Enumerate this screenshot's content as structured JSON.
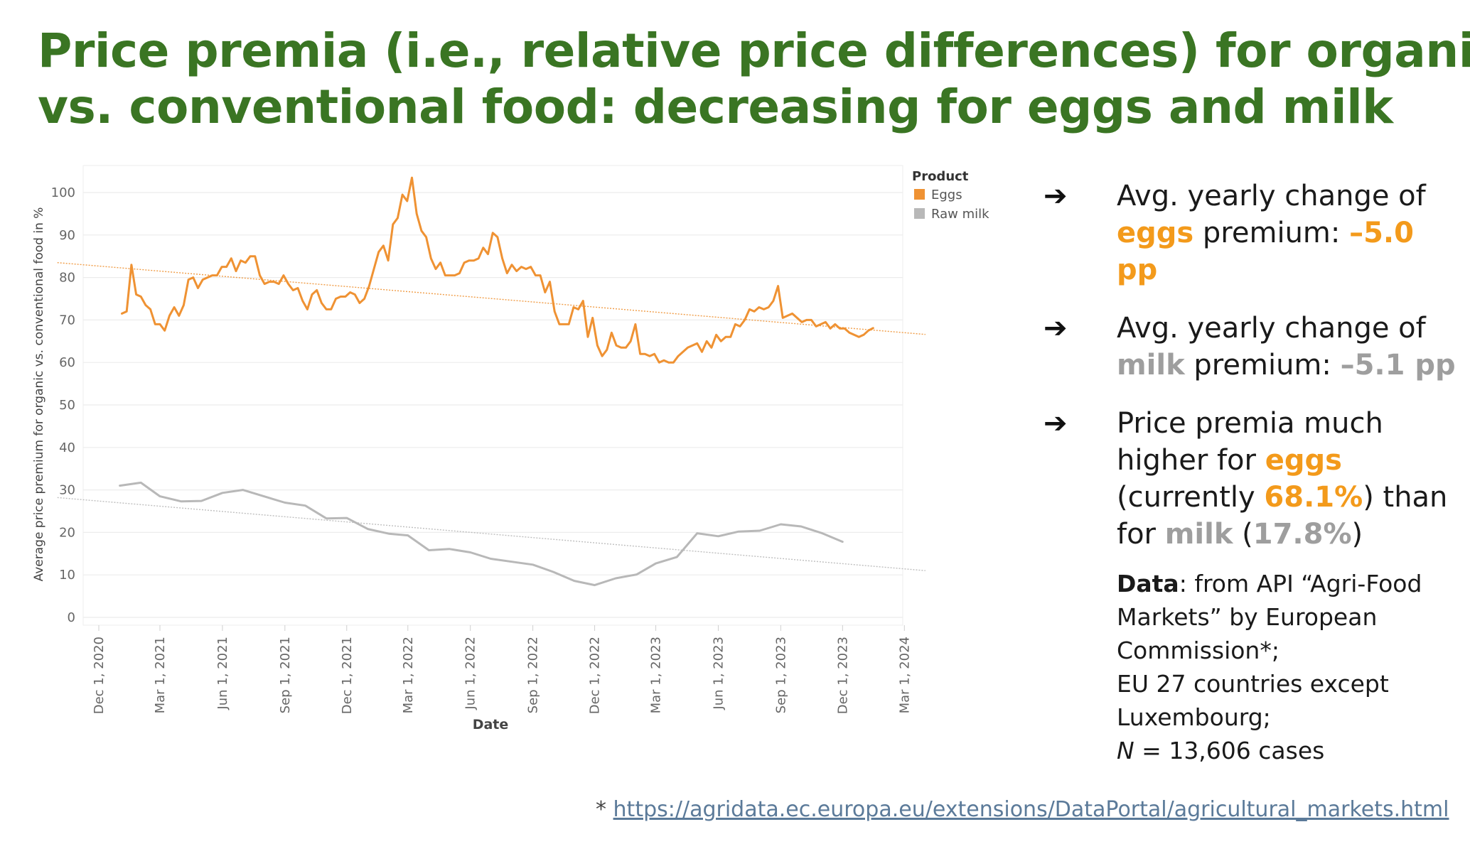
{
  "title": {
    "line1": "Price premia (i.e., relative price differences) for organic",
    "line2": "vs. conventional food: decreasing for eggs and milk"
  },
  "colors": {
    "title": "#3a7523",
    "eggs": "#ef9233",
    "milk": "#b8b8b8",
    "highlight_orange": "#f39a1b",
    "highlight_gray": "#9e9e9e"
  },
  "bullets": {
    "b1": {
      "pre": "Avg. yearly change of",
      "keyword": "eggs",
      "mid": " premium: ",
      "value": "–5.0 pp"
    },
    "b2": {
      "pre": "Avg. yearly change of",
      "keyword": "milk",
      "mid": " premium: ",
      "value": "–5.1 pp"
    },
    "b3": {
      "t1": "Price premia much higher for ",
      "k1": "eggs",
      "t2": "(currently ",
      "v1": "68.1%",
      "t3": ") than for ",
      "k2": "milk",
      "t4": " (",
      "v2": "17.8%",
      "t5": ")"
    }
  },
  "note": {
    "label": "Data",
    "text1": ": from API “Agri-Food Markets” by European Commission*;",
    "text2": "EU 27 countries except Luxembourg;",
    "n_label": "N",
    "n_text": " = 13,606 cases"
  },
  "footnote": {
    "star": "* ",
    "link": "https://agridata.ec.europa.eu/extensions/DataPortal/agricultural_markets.html"
  },
  "chart_data": {
    "type": "line",
    "xlabel": "Date",
    "ylabel": "Average price premium for organic vs. conventional food in %",
    "ylim": [
      0,
      100
    ],
    "yticks": [
      "0",
      "10",
      "20",
      "30",
      "40",
      "50",
      "60",
      "70",
      "80",
      "90",
      "100"
    ],
    "xticks": [
      "Dec 1, 2020",
      "Mar 1, 2021",
      "Jun 1, 2021",
      "Sep 1, 2021",
      "Dec 1, 2021",
      "Mar 1, 2022",
      "Jun 1, 2022",
      "Sep 1, 2022",
      "Dec 1, 2022",
      "Mar 1, 2023",
      "Jun 1, 2023",
      "Sep 1, 2023",
      "Dec 1, 2023",
      "Mar 1, 2024"
    ],
    "grid": "horizontal",
    "legend": {
      "title": "Product",
      "position": "top-right"
    },
    "series": [
      {
        "name": "Eggs",
        "color": "#ef9233",
        "points": [
          [
            "2021-01-04",
            71.5
          ],
          [
            "2021-01-11",
            72.0
          ],
          [
            "2021-01-18",
            83.0
          ],
          [
            "2021-01-25",
            76.0
          ],
          [
            "2021-02-01",
            75.5
          ],
          [
            "2021-02-08",
            73.5
          ],
          [
            "2021-02-15",
            72.5
          ],
          [
            "2021-02-22",
            69.0
          ],
          [
            "2021-03-01",
            69.0
          ],
          [
            "2021-03-08",
            67.5
          ],
          [
            "2021-03-15",
            71.0
          ],
          [
            "2021-03-22",
            73.0
          ],
          [
            "2021-03-29",
            71.0
          ],
          [
            "2021-04-05",
            73.5
          ],
          [
            "2021-04-12",
            79.5
          ],
          [
            "2021-04-19",
            80.0
          ],
          [
            "2021-04-26",
            77.5
          ],
          [
            "2021-05-03",
            79.5
          ],
          [
            "2021-05-10",
            80.0
          ],
          [
            "2021-05-17",
            80.5
          ],
          [
            "2021-05-24",
            80.5
          ],
          [
            "2021-05-31",
            82.5
          ],
          [
            "2021-06-07",
            82.5
          ],
          [
            "2021-06-14",
            84.5
          ],
          [
            "2021-06-21",
            81.5
          ],
          [
            "2021-06-28",
            84.0
          ],
          [
            "2021-07-05",
            83.5
          ],
          [
            "2021-07-12",
            85.0
          ],
          [
            "2021-07-19",
            85.0
          ],
          [
            "2021-07-26",
            80.5
          ],
          [
            "2021-08-02",
            78.5
          ],
          [
            "2021-08-09",
            79.0
          ],
          [
            "2021-08-16",
            79.0
          ],
          [
            "2021-08-23",
            78.5
          ],
          [
            "2021-08-30",
            80.5
          ],
          [
            "2021-09-06",
            78.5
          ],
          [
            "2021-09-13",
            77.0
          ],
          [
            "2021-09-20",
            77.5
          ],
          [
            "2021-09-27",
            74.5
          ],
          [
            "2021-10-04",
            72.5
          ],
          [
            "2021-10-11",
            76.0
          ],
          [
            "2021-10-18",
            77.0
          ],
          [
            "2021-10-25",
            74.0
          ],
          [
            "2021-11-01",
            72.5
          ],
          [
            "2021-11-08",
            72.5
          ],
          [
            "2021-11-15",
            75.0
          ],
          [
            "2021-11-22",
            75.5
          ],
          [
            "2021-11-29",
            75.5
          ],
          [
            "2021-12-06",
            76.5
          ],
          [
            "2021-12-13",
            76.0
          ],
          [
            "2021-12-20",
            74.0
          ],
          [
            "2021-12-27",
            75.0
          ],
          [
            "2022-01-03",
            78.0
          ],
          [
            "2022-01-10",
            82.0
          ],
          [
            "2022-01-17",
            86.0
          ],
          [
            "2022-01-24",
            87.5
          ],
          [
            "2022-01-31",
            84.0
          ],
          [
            "2022-02-07",
            92.5
          ],
          [
            "2022-02-14",
            94.0
          ],
          [
            "2022-02-21",
            99.5
          ],
          [
            "2022-02-28",
            98.0
          ],
          [
            "2022-03-07",
            103.5
          ],
          [
            "2022-03-14",
            95.0
          ],
          [
            "2022-03-21",
            91.0
          ],
          [
            "2022-03-28",
            89.5
          ],
          [
            "2022-04-04",
            84.5
          ],
          [
            "2022-04-11",
            82.0
          ],
          [
            "2022-04-18",
            83.5
          ],
          [
            "2022-04-25",
            80.5
          ],
          [
            "2022-05-02",
            80.5
          ],
          [
            "2022-05-09",
            80.5
          ],
          [
            "2022-05-16",
            81.0
          ],
          [
            "2022-05-23",
            83.5
          ],
          [
            "2022-05-30",
            84.0
          ],
          [
            "2022-06-06",
            84.0
          ],
          [
            "2022-06-13",
            84.5
          ],
          [
            "2022-06-20",
            87.0
          ],
          [
            "2022-06-27",
            85.5
          ],
          [
            "2022-07-04",
            90.5
          ],
          [
            "2022-07-11",
            89.5
          ],
          [
            "2022-07-18",
            84.5
          ],
          [
            "2022-07-25",
            81.0
          ],
          [
            "2022-08-01",
            83.0
          ],
          [
            "2022-08-08",
            81.5
          ],
          [
            "2022-08-15",
            82.5
          ],
          [
            "2022-08-22",
            82.0
          ],
          [
            "2022-08-29",
            82.5
          ],
          [
            "2022-09-05",
            80.5
          ],
          [
            "2022-09-12",
            80.5
          ],
          [
            "2022-09-19",
            76.5
          ],
          [
            "2022-09-26",
            79.0
          ],
          [
            "2022-10-03",
            72.0
          ],
          [
            "2022-10-10",
            69.0
          ],
          [
            "2022-10-17",
            69.0
          ],
          [
            "2022-10-24",
            69.0
          ],
          [
            "2022-10-31",
            73.0
          ],
          [
            "2022-11-07",
            72.5
          ],
          [
            "2022-11-14",
            74.5
          ],
          [
            "2022-11-21",
            66.0
          ],
          [
            "2022-11-28",
            70.5
          ],
          [
            "2022-12-05",
            64.0
          ],
          [
            "2022-12-12",
            61.5
          ],
          [
            "2022-12-19",
            63.0
          ],
          [
            "2022-12-26",
            67.0
          ],
          [
            "2023-01-02",
            64.0
          ],
          [
            "2023-01-09",
            63.5
          ],
          [
            "2023-01-16",
            63.5
          ],
          [
            "2023-01-23",
            65.0
          ],
          [
            "2023-01-30",
            69.0
          ],
          [
            "2023-02-06",
            62.0
          ],
          [
            "2023-02-13",
            62.0
          ],
          [
            "2023-02-20",
            61.5
          ],
          [
            "2023-02-27",
            62.0
          ],
          [
            "2023-03-06",
            60.0
          ],
          [
            "2023-03-13",
            60.5
          ],
          [
            "2023-03-20",
            60.0
          ],
          [
            "2023-03-27",
            60.0
          ],
          [
            "2023-04-03",
            61.5
          ],
          [
            "2023-04-10",
            62.5
          ],
          [
            "2023-04-17",
            63.5
          ],
          [
            "2023-04-24",
            64.0
          ],
          [
            "2023-05-01",
            64.5
          ],
          [
            "2023-05-08",
            62.5
          ],
          [
            "2023-05-15",
            65.0
          ],
          [
            "2023-05-22",
            63.5
          ],
          [
            "2023-05-29",
            66.5
          ],
          [
            "2023-06-05",
            65.0
          ],
          [
            "2023-06-12",
            66.0
          ],
          [
            "2023-06-19",
            66.0
          ],
          [
            "2023-06-26",
            69.0
          ],
          [
            "2023-07-03",
            68.5
          ],
          [
            "2023-07-10",
            70.0
          ],
          [
            "2023-07-17",
            72.5
          ],
          [
            "2023-07-24",
            72.0
          ],
          [
            "2023-07-31",
            73.0
          ],
          [
            "2023-08-07",
            72.5
          ],
          [
            "2023-08-14",
            73.0
          ],
          [
            "2023-08-21",
            74.5
          ],
          [
            "2023-08-28",
            78.0
          ],
          [
            "2023-09-04",
            70.5
          ],
          [
            "2023-09-11",
            71.0
          ],
          [
            "2023-09-18",
            71.5
          ],
          [
            "2023-09-25",
            70.5
          ],
          [
            "2023-10-02",
            69.5
          ],
          [
            "2023-10-09",
            70.0
          ],
          [
            "2023-10-16",
            70.0
          ],
          [
            "2023-10-23",
            68.5
          ],
          [
            "2023-10-30",
            69.0
          ],
          [
            "2023-11-06",
            69.5
          ],
          [
            "2023-11-13",
            68.0
          ],
          [
            "2023-11-20",
            69.0
          ],
          [
            "2023-11-27",
            68.0
          ],
          [
            "2023-12-04",
            68.0
          ],
          [
            "2023-12-11",
            67.0
          ],
          [
            "2023-12-18",
            66.5
          ],
          [
            "2023-12-25",
            66.0
          ],
          [
            "2024-01-01",
            66.5
          ],
          [
            "2024-01-08",
            67.5
          ],
          [
            "2024-01-15",
            68.1
          ]
        ],
        "trend": [
          [
            "2020-10-01",
            83.5
          ],
          [
            "2024-04-01",
            66.6
          ]
        ]
      },
      {
        "name": "Raw milk",
        "color": "#b8b8b8",
        "points": [
          [
            "2021-01-01",
            31.0
          ],
          [
            "2021-02-01",
            31.7
          ],
          [
            "2021-03-01",
            28.5
          ],
          [
            "2021-04-01",
            27.3
          ],
          [
            "2021-05-01",
            27.4
          ],
          [
            "2021-06-01",
            29.3
          ],
          [
            "2021-07-01",
            30.0
          ],
          [
            "2021-08-01",
            28.5
          ],
          [
            "2021-09-01",
            27.0
          ],
          [
            "2021-10-01",
            26.3
          ],
          [
            "2021-11-01",
            23.3
          ],
          [
            "2021-12-01",
            23.4
          ],
          [
            "2022-01-01",
            20.8
          ],
          [
            "2022-02-01",
            19.7
          ],
          [
            "2022-03-01",
            19.3
          ],
          [
            "2022-04-01",
            15.8
          ],
          [
            "2022-05-01",
            16.1
          ],
          [
            "2022-06-01",
            15.3
          ],
          [
            "2022-07-01",
            13.8
          ],
          [
            "2022-08-01",
            13.1
          ],
          [
            "2022-09-01",
            12.4
          ],
          [
            "2022-10-01",
            10.7
          ],
          [
            "2022-11-01",
            8.6
          ],
          [
            "2022-12-01",
            7.6
          ],
          [
            "2023-01-01",
            9.2
          ],
          [
            "2023-02-01",
            10.1
          ],
          [
            "2023-03-01",
            12.7
          ],
          [
            "2023-04-01",
            14.2
          ],
          [
            "2023-05-01",
            19.8
          ],
          [
            "2023-06-01",
            19.1
          ],
          [
            "2023-07-01",
            20.2
          ],
          [
            "2023-08-01",
            20.4
          ],
          [
            "2023-09-01",
            21.9
          ],
          [
            "2023-10-01",
            21.4
          ],
          [
            "2023-11-01",
            19.8
          ],
          [
            "2023-12-01",
            17.8
          ]
        ],
        "trend": [
          [
            "2020-10-01",
            28.2
          ],
          [
            "2024-04-01",
            11.0
          ]
        ]
      }
    ]
  }
}
